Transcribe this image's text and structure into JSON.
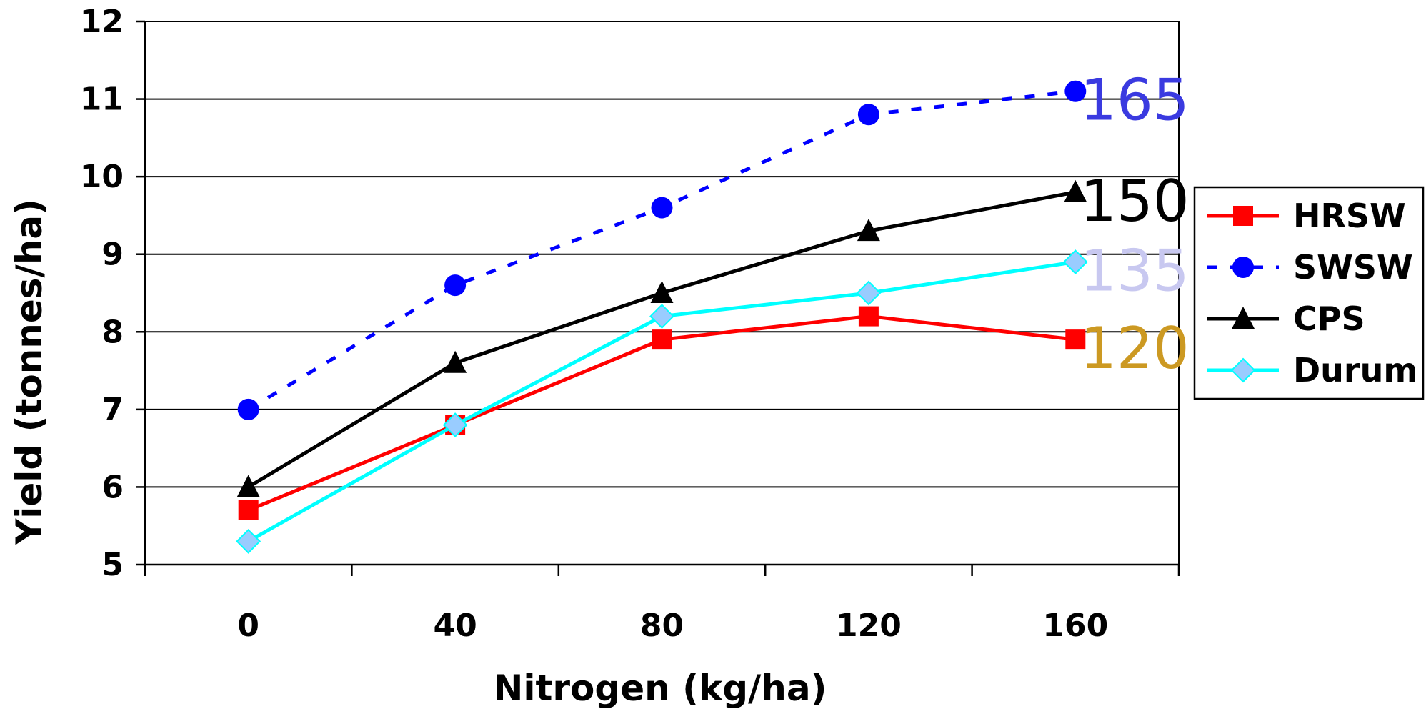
{
  "chart_data": {
    "type": "line",
    "title": "",
    "xlabel": "Nitrogen (kg/ha)",
    "ylabel": "Yield (tonnes/ha)",
    "x": [
      0,
      40,
      80,
      120,
      160
    ],
    "x_tick_labels": [
      "0",
      "40",
      "80",
      "120",
      "160"
    ],
    "ylim": [
      5,
      12
    ],
    "y_ticks": [
      5,
      6,
      7,
      8,
      9,
      10,
      11,
      12
    ],
    "y_tick_labels": [
      "5",
      "6",
      "7",
      "8",
      "9",
      "10",
      "11",
      "12"
    ],
    "grid": "horizontal",
    "legend_position": "right",
    "series": [
      {
        "name": "HRSW",
        "values": [
          5.7,
          6.8,
          7.9,
          8.2,
          7.9
        ],
        "color": "#ff0000",
        "marker": "square",
        "dash": "solid",
        "end_label": "120",
        "end_label_color": "#cc9922"
      },
      {
        "name": "SWSW",
        "values": [
          7.0,
          8.6,
          9.6,
          10.8,
          11.1
        ],
        "color": "#0000ff",
        "marker": "circle",
        "dash": "dashed",
        "end_label": "165",
        "end_label_color": "#3a3ae0"
      },
      {
        "name": "CPS",
        "values": [
          6.0,
          7.6,
          8.5,
          9.3,
          9.8
        ],
        "color": "#000000",
        "marker": "triangle",
        "dash": "solid",
        "end_label": "150",
        "end_label_color": "#000000"
      },
      {
        "name": "Durum",
        "values": [
          5.3,
          6.8,
          8.2,
          8.5,
          8.9
        ],
        "color": "#00ffff",
        "marker": "diamond",
        "dash": "solid",
        "end_label": "135",
        "end_label_color": "#c8c8f0",
        "marker_fill": "#99ccff"
      }
    ]
  }
}
